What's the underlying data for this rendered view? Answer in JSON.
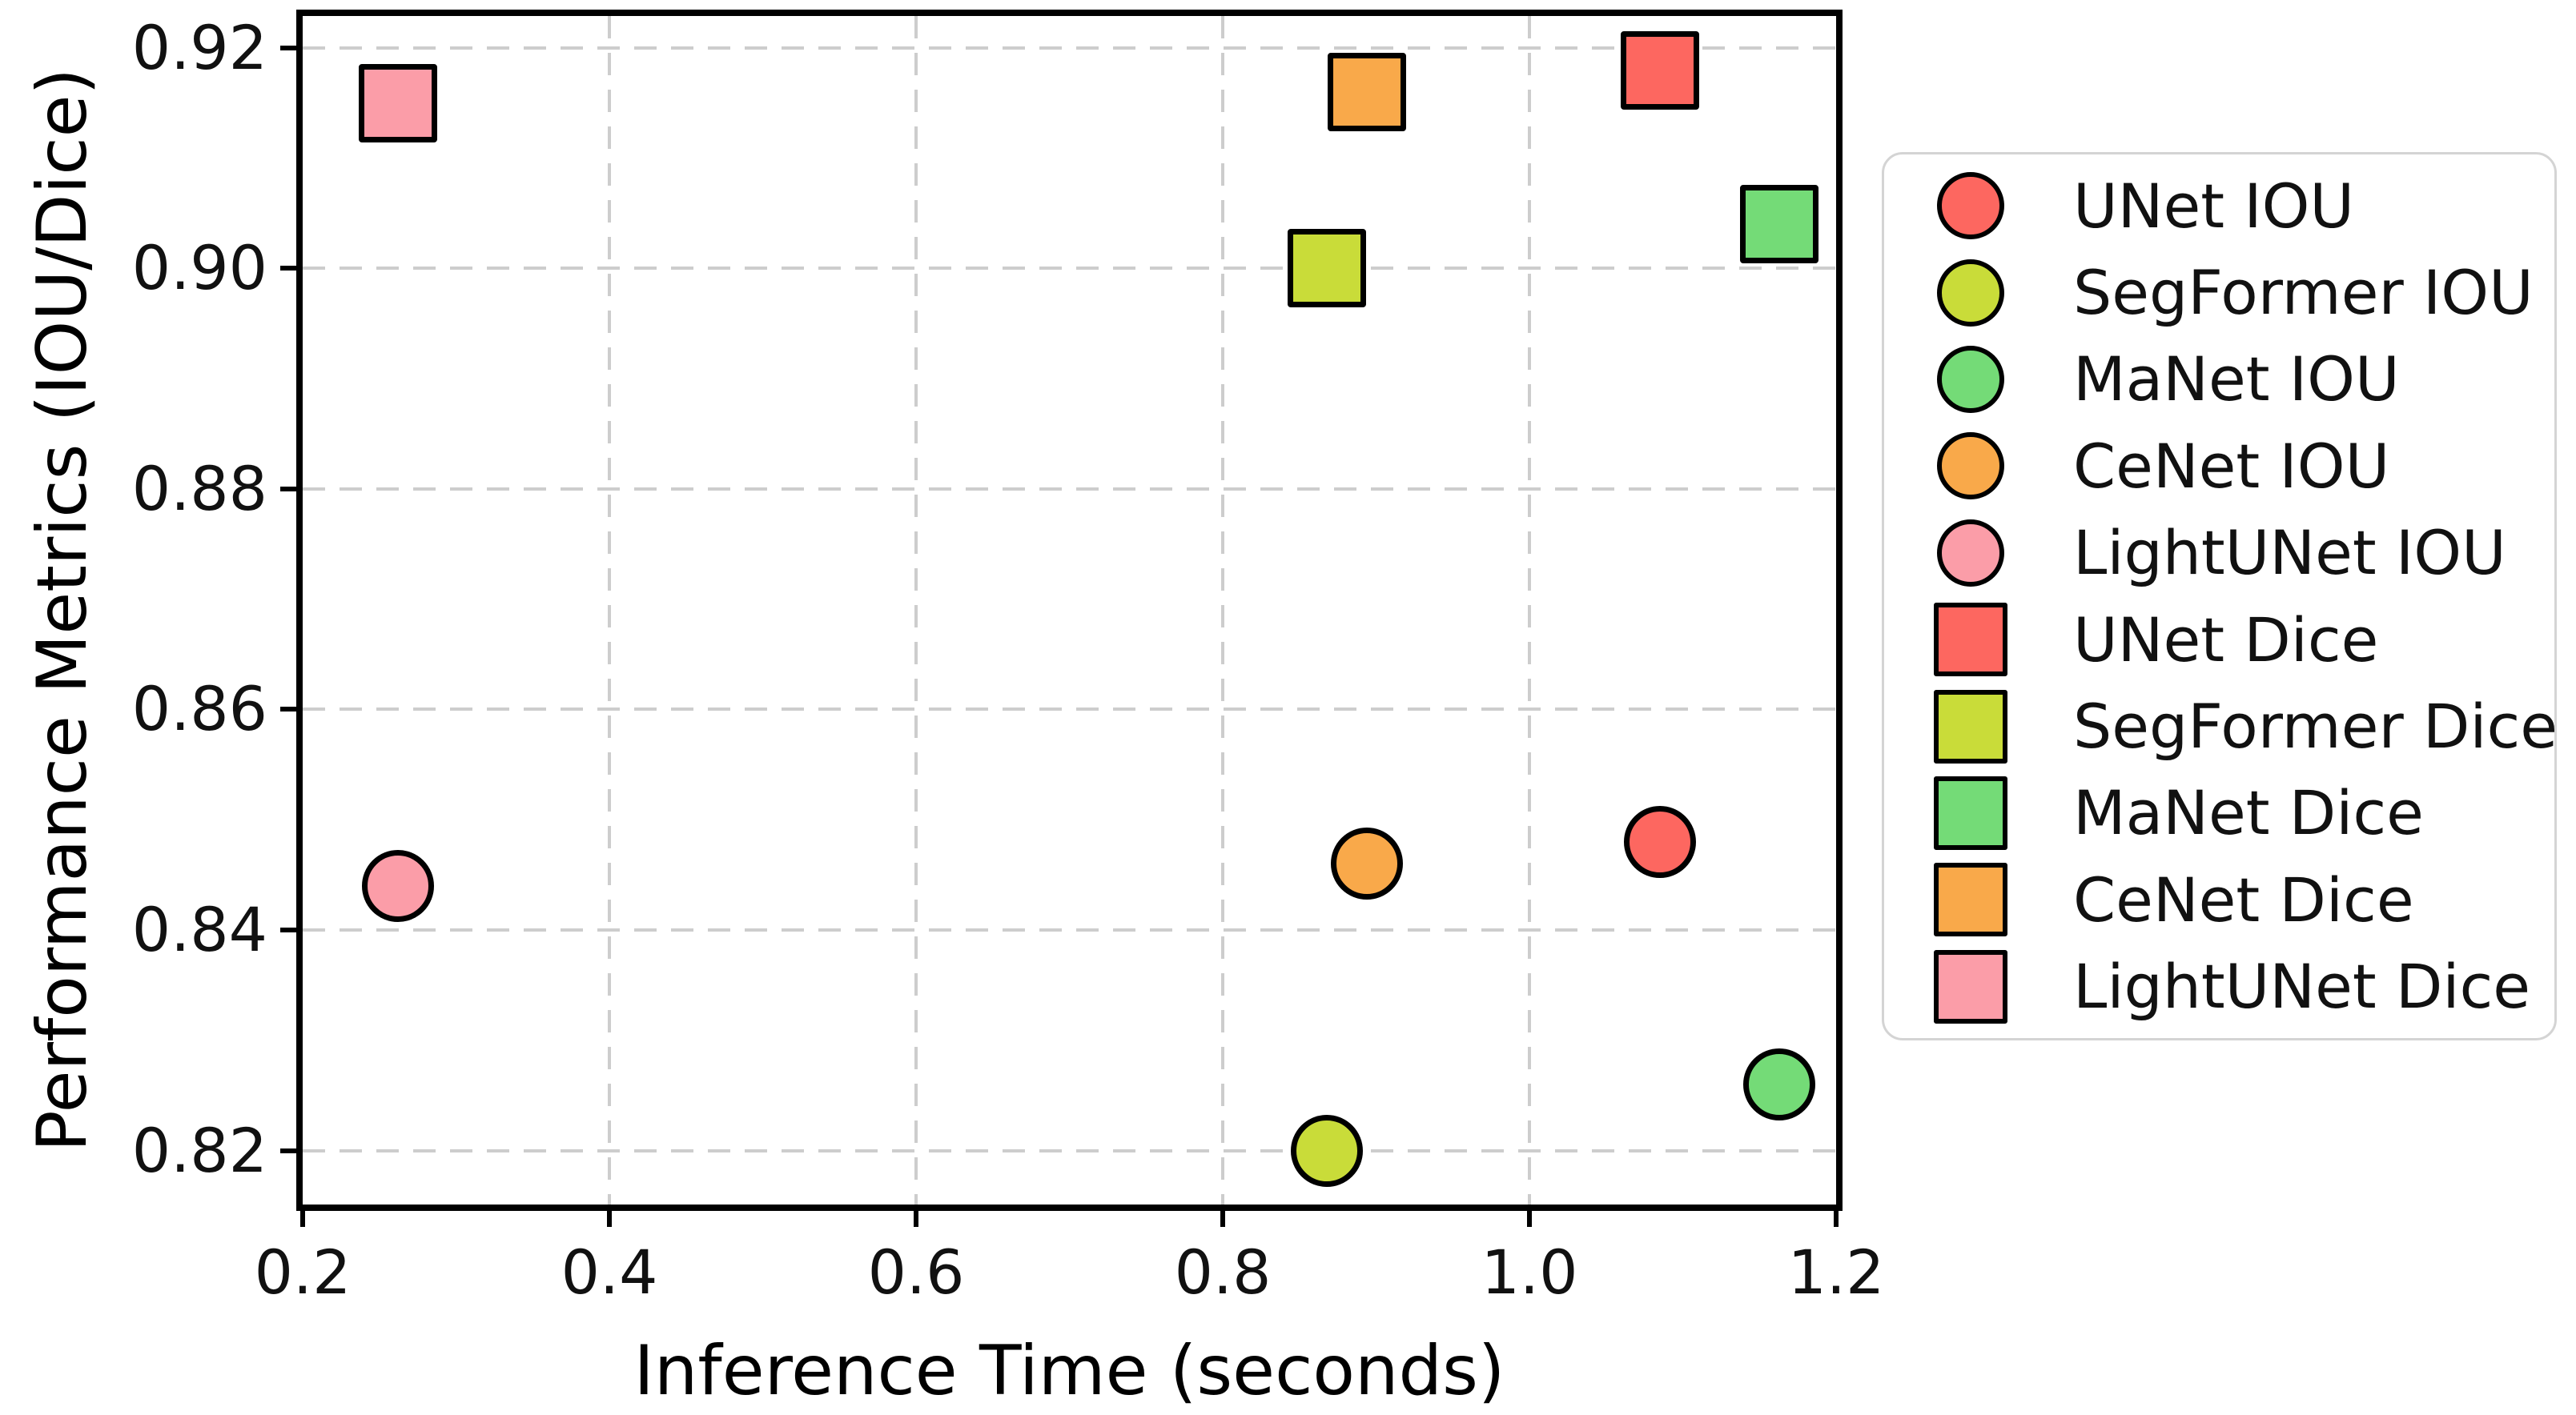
{
  "chart_data": {
    "type": "scatter",
    "title": "",
    "xlabel": "Inference Time (seconds)",
    "ylabel": "Performance Metrics (IOU/Dice)",
    "xlim": [
      0.2,
      1.2
    ],
    "ylim": [
      0.8151,
      0.9229
    ],
    "grid": true,
    "grid_style": "dashed",
    "grid_color": "#cdcdcd",
    "axis_color": "#000000",
    "background_color": "#ffffff",
    "legend_position": "right-outside",
    "x_ticks": [
      {
        "v": 0.2,
        "label": "0.2"
      },
      {
        "v": 0.4,
        "label": "0.4"
      },
      {
        "v": 0.6,
        "label": "0.6"
      },
      {
        "v": 0.8,
        "label": "0.8"
      },
      {
        "v": 1.0,
        "label": "1.0"
      },
      {
        "v": 1.2,
        "label": "1.2"
      }
    ],
    "y_ticks": [
      {
        "v": 0.82,
        "label": "0.82"
      },
      {
        "v": 0.84,
        "label": "0.84"
      },
      {
        "v": 0.86,
        "label": "0.86"
      },
      {
        "v": 0.88,
        "label": "0.88"
      },
      {
        "v": 0.9,
        "label": "0.90"
      },
      {
        "v": 0.92,
        "label": "0.92"
      }
    ],
    "series": [
      {
        "name": "UNet IOU",
        "marker": "circle",
        "color": "#fd6760",
        "x": 1.085,
        "y": 0.848
      },
      {
        "name": "SegFormer IOU",
        "marker": "circle",
        "color": "#c9dc39",
        "x": 0.868,
        "y": 0.82
      },
      {
        "name": "MaNet IOU",
        "marker": "circle",
        "color": "#74db77",
        "x": 1.163,
        "y": 0.826
      },
      {
        "name": "CeNet IOU",
        "marker": "circle",
        "color": "#f9a94a",
        "x": 0.894,
        "y": 0.846
      },
      {
        "name": "LightUNet IOU",
        "marker": "circle",
        "color": "#fb9da8",
        "x": 0.262,
        "y": 0.844
      },
      {
        "name": "UNet Dice",
        "marker": "square",
        "color": "#fd6760",
        "x": 1.085,
        "y": 0.918
      },
      {
        "name": "SegFormer Dice",
        "marker": "square",
        "color": "#c9dc39",
        "x": 0.868,
        "y": 0.9
      },
      {
        "name": "MaNet Dice",
        "marker": "square",
        "color": "#74db77",
        "x": 1.163,
        "y": 0.904
      },
      {
        "name": "CeNet Dice",
        "marker": "square",
        "color": "#f9a94a",
        "x": 0.894,
        "y": 0.916
      },
      {
        "name": "LightUNet Dice",
        "marker": "square",
        "color": "#fb9da8",
        "x": 0.262,
        "y": 0.915
      }
    ]
  }
}
